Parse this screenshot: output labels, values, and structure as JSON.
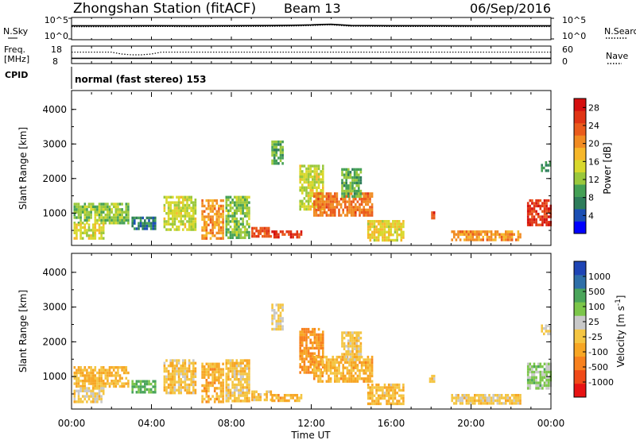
{
  "header": {
    "title": "Zhongshan Station (fitACF)",
    "beam": "Beam 13",
    "date": "06/Sep/2016",
    "mode": "normal (fast stereo) 153"
  },
  "chart_data": [
    {
      "type": "line",
      "panel": "noise",
      "left_labels": [
        "N.Sky",
        "10^5",
        "10^0"
      ],
      "right_labels": [
        "N.Search",
        "10^5",
        "10^0"
      ],
      "scale": "log",
      "ylim": [
        1,
        100000
      ],
      "series": [
        {
          "name": "N.Sky",
          "style": "solid"
        },
        {
          "name": "N.Search",
          "style": "dotted"
        }
      ],
      "x": [
        0,
        2,
        4,
        6,
        8,
        10,
        11,
        12,
        12.5,
        13,
        13.5,
        14,
        16,
        18,
        20,
        22,
        24
      ],
      "nsky": [
        1500,
        1500,
        1600,
        1500,
        1600,
        1800,
        2000,
        2500,
        3200,
        3500,
        2500,
        1800,
        1600,
        1600,
        1500,
        1500,
        1500
      ],
      "nsearch": [
        900,
        900,
        1000,
        950,
        1000,
        1100,
        1300,
        1700,
        2200,
        2600,
        1700,
        1200,
        1000,
        1000,
        950,
        950,
        950
      ]
    },
    {
      "type": "line",
      "panel": "frequency",
      "left_labels": [
        "Freq.",
        "[MHz]",
        "18",
        "8",
        "CPID"
      ],
      "right_labels": [
        "60",
        "0",
        "Nave"
      ],
      "ylim_freq": [
        8,
        18
      ],
      "ylim_nave": [
        0,
        60
      ],
      "series": [
        {
          "name": "Freq.",
          "style": "solid"
        },
        {
          "name": "Nave",
          "style": "dotted"
        }
      ],
      "x": [
        0,
        2,
        2.5,
        3,
        3.5,
        4,
        4.5,
        6,
        12,
        18,
        24
      ],
      "freq": [
        10.8,
        10.8,
        10.8,
        10.8,
        10.8,
        10.8,
        10.8,
        10.8,
        10.8,
        10.8,
        10.8
      ],
      "nave": [
        40,
        40,
        33,
        30,
        30,
        33,
        40,
        40,
        40,
        40,
        40
      ]
    },
    {
      "type": "heatmap",
      "panel": "power",
      "ylabel": "Slant Range [km]",
      "yticks": [
        "1000",
        "2000",
        "3000",
        "4000"
      ],
      "ylim": [
        180,
        4500
      ],
      "xlim": [
        0,
        24
      ],
      "colorbar": {
        "label": "Power [dB]",
        "ticks": [
          "4",
          "8",
          "12",
          "16",
          "20",
          "24",
          "28"
        ],
        "range": [
          0,
          30
        ],
        "colors": [
          "#0000ff",
          "#1b4fb4",
          "#2e7d5b",
          "#44a055",
          "#9ac83c",
          "#d8d82c",
          "#f6b72a",
          "#f18b22",
          "#ea5b1c",
          "#e03414",
          "#d40f0f"
        ]
      },
      "regions": [
        {
          "t": [
            0.1,
            2.8
          ],
          "r": [
            700,
            1300
          ],
          "v": 12
        },
        {
          "t": [
            0.1,
            1.6
          ],
          "r": [
            300,
            700
          ],
          "v": 15
        },
        {
          "t": [
            3.0,
            4.2
          ],
          "r": [
            550,
            900
          ],
          "v": 7
        },
        {
          "t": [
            4.6,
            6.2
          ],
          "r": [
            550,
            1500
          ],
          "v": 14
        },
        {
          "t": [
            6.5,
            7.6
          ],
          "r": [
            300,
            1400
          ],
          "v": 20
        },
        {
          "t": [
            7.7,
            8.9
          ],
          "r": [
            300,
            1500
          ],
          "v": 12
        },
        {
          "t": [
            9.0,
            10.0
          ],
          "r": [
            300,
            600
          ],
          "v": 24
        },
        {
          "t": [
            10.0,
            10.6
          ],
          "r": [
            2400,
            3100
          ],
          "v": 10
        },
        {
          "t": [
            11.4,
            12.6
          ],
          "r": [
            1100,
            2400
          ],
          "v": 14
        },
        {
          "t": [
            10.0,
            11.5
          ],
          "r": [
            300,
            500
          ],
          "v": 26
        },
        {
          "t": [
            12.1,
            15.0
          ],
          "r": [
            900,
            1600
          ],
          "v": 22
        },
        {
          "t": [
            13.5,
            14.5
          ],
          "r": [
            1500,
            2300
          ],
          "v": 10
        },
        {
          "t": [
            14.8,
            16.6
          ],
          "r": [
            200,
            800
          ],
          "v": 16
        },
        {
          "t": [
            17.9,
            18.2
          ],
          "r": [
            850,
            1050
          ],
          "v": 26
        },
        {
          "t": [
            19.0,
            22.5
          ],
          "r": [
            200,
            500
          ],
          "v": 20
        },
        {
          "t": [
            22.8,
            24.0
          ],
          "r": [
            650,
            1400
          ],
          "v": 26
        },
        {
          "t": [
            23.5,
            24.0
          ],
          "r": [
            2200,
            2500
          ],
          "v": 9
        }
      ]
    },
    {
      "type": "heatmap",
      "panel": "velocity",
      "ylabel": "Slant Range [km]",
      "yticks": [
        "1000",
        "2000",
        "3000",
        "4000"
      ],
      "ylim": [
        180,
        4500
      ],
      "xlim": [
        0,
        24
      ],
      "xticks": [
        "00:00",
        "04:00",
        "08:00",
        "12:00",
        "16:00",
        "20:00",
        "00:00"
      ],
      "xlabel": "Time UT",
      "colorbar": {
        "label": "Velocity [m s^-1]",
        "ticks": [
          "1000",
          "500",
          "100",
          "25",
          "-25",
          "-100",
          "-500",
          "-1000"
        ],
        "range": [
          -1200,
          1200
        ],
        "colors": [
          "#e81313",
          "#f04a18",
          "#f7811e",
          "#f7a624",
          "#f4c542",
          "#c8c8c8",
          "#7cc64a",
          "#4aa55b",
          "#2f6fa8",
          "#1f45b5"
        ]
      },
      "regions": [
        {
          "t": [
            0.1,
            2.8
          ],
          "r": [
            700,
            1300
          ],
          "v": -250
        },
        {
          "t": [
            0.1,
            1.6
          ],
          "r": [
            300,
            700
          ],
          "v": -60
        },
        {
          "t": [
            3.0,
            4.2
          ],
          "r": [
            550,
            900
          ],
          "v": 500
        },
        {
          "t": [
            4.6,
            6.2
          ],
          "r": [
            550,
            1500
          ],
          "v": -150
        },
        {
          "t": [
            6.5,
            7.6
          ],
          "r": [
            300,
            1400
          ],
          "v": -300
        },
        {
          "t": [
            7.7,
            8.9
          ],
          "r": [
            300,
            1500
          ],
          "v": -150
        },
        {
          "t": [
            9.0,
            10.0
          ],
          "r": [
            300,
            600
          ],
          "v": -200
        },
        {
          "t": [
            10.0,
            10.6
          ],
          "r": [
            2400,
            3100
          ],
          "v": 0
        },
        {
          "t": [
            11.4,
            12.6
          ],
          "r": [
            1100,
            2400
          ],
          "v": -500
        },
        {
          "t": [
            10.0,
            11.5
          ],
          "r": [
            300,
            500
          ],
          "v": -300
        },
        {
          "t": [
            12.1,
            15.0
          ],
          "r": [
            900,
            1600
          ],
          "v": -300
        },
        {
          "t": [
            13.5,
            14.5
          ],
          "r": [
            1500,
            2300
          ],
          "v": -100
        },
        {
          "t": [
            14.8,
            16.6
          ],
          "r": [
            200,
            800
          ],
          "v": -200
        },
        {
          "t": [
            17.9,
            18.2
          ],
          "r": [
            850,
            1050
          ],
          "v": -100
        },
        {
          "t": [
            19.0,
            22.5
          ],
          "r": [
            200,
            500
          ],
          "v": -100
        },
        {
          "t": [
            22.8,
            24.0
          ],
          "r": [
            650,
            1400
          ],
          "v": 300
        },
        {
          "t": [
            23.5,
            24.0
          ],
          "r": [
            2200,
            2500
          ],
          "v": 0
        }
      ]
    }
  ]
}
